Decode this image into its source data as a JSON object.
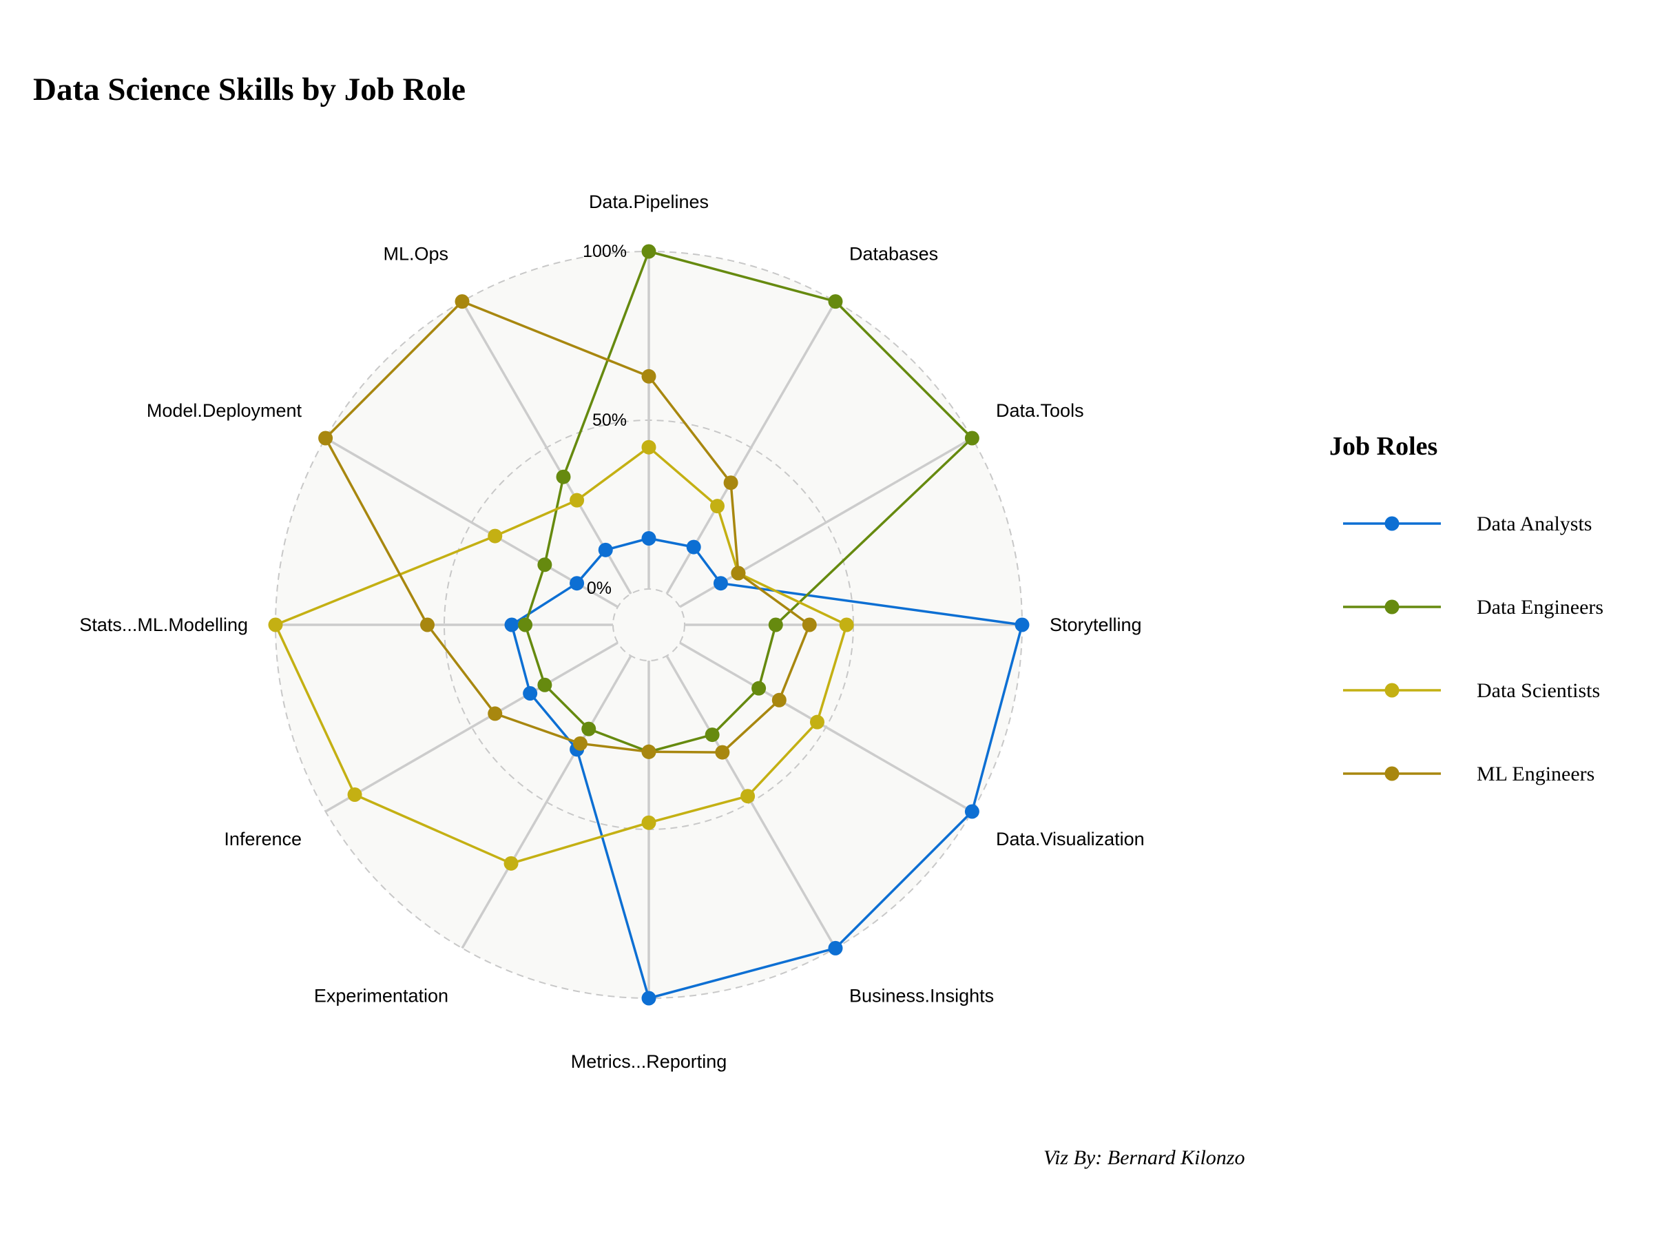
{
  "title": "Data Science Skills by Job Role",
  "caption": "Viz By: Bernard Kilonzo",
  "legend": {
    "title": "Job Roles"
  },
  "colors": {
    "background_panel": "#f9f9f7",
    "grid": "#c8c8c8",
    "spoke": "#cccccc"
  },
  "chart_data": {
    "type": "radar",
    "title": "Data Science Skills by Job Role",
    "axis_ticks": [
      "0%",
      "50%",
      "100%"
    ],
    "axis_range": [
      0,
      100
    ],
    "grid": true,
    "legend_position": "right",
    "categories": [
      "Data.Pipelines",
      "Databases",
      "Data.Tools",
      "Storytelling",
      "Data.Visualization",
      "Business.Insights",
      "Metrics...Reporting",
      "Experimentation",
      "Inference",
      "Stats...ML.Modelling",
      "Model.Deployment",
      "ML.Ops"
    ],
    "series": [
      {
        "name": "Data Analysts",
        "color": "#0d6fd3",
        "values": [
          15,
          16,
          14,
          100,
          100,
          100,
          100,
          32,
          30,
          30,
          14,
          15
        ]
      },
      {
        "name": "Data Engineers",
        "color": "#668a0f",
        "values": [
          100,
          100,
          100,
          27,
          27,
          27,
          27,
          25,
          25,
          26,
          25,
          40
        ]
      },
      {
        "name": "Data Scientists",
        "color": "#c4b013",
        "values": [
          42,
          30,
          20,
          48,
          47,
          48,
          48,
          71,
          90,
          100,
          42,
          32
        ]
      },
      {
        "name": "ML Engineers",
        "color": "#a8870f",
        "values": [
          63,
          38,
          20,
          37,
          34,
          33,
          27,
          30,
          42,
          55,
          100,
          100
        ]
      }
    ]
  }
}
